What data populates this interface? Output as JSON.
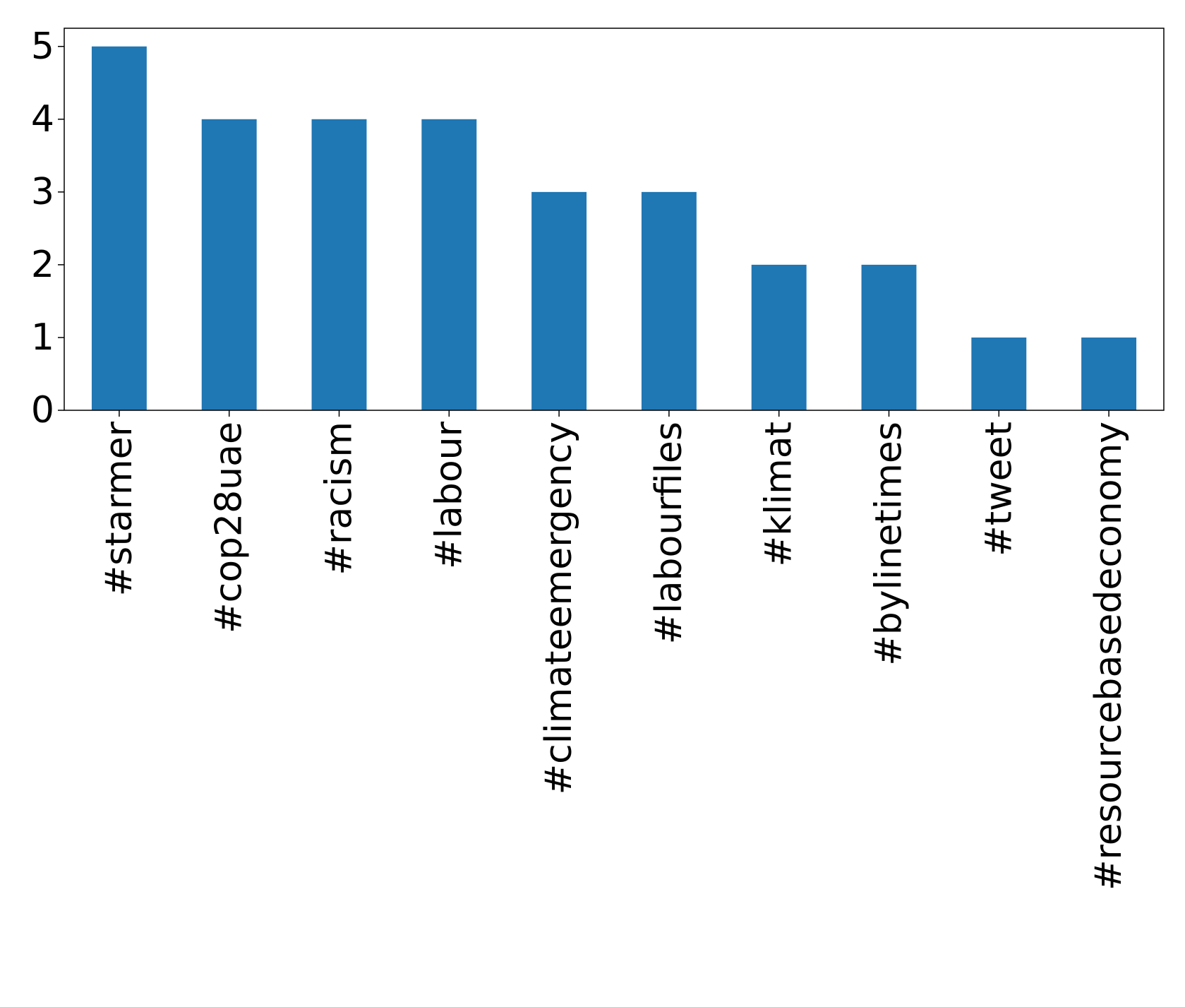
{
  "chart_data": {
    "type": "bar",
    "categories": [
      "#starmer",
      "#cop28uae",
      "#racism",
      "#labour",
      "#climateemergency",
      "#labourfiles",
      "#klimat",
      "#bylinetimes",
      "#tweet",
      "#resourcebasedeconomy"
    ],
    "values": [
      5,
      4,
      4,
      4,
      3,
      3,
      2,
      2,
      1,
      1
    ],
    "color": "#1f77b4",
    "ylim": [
      0,
      5.25
    ],
    "yticks": [
      0,
      1,
      2,
      3,
      4,
      5
    ],
    "grid": false
  }
}
